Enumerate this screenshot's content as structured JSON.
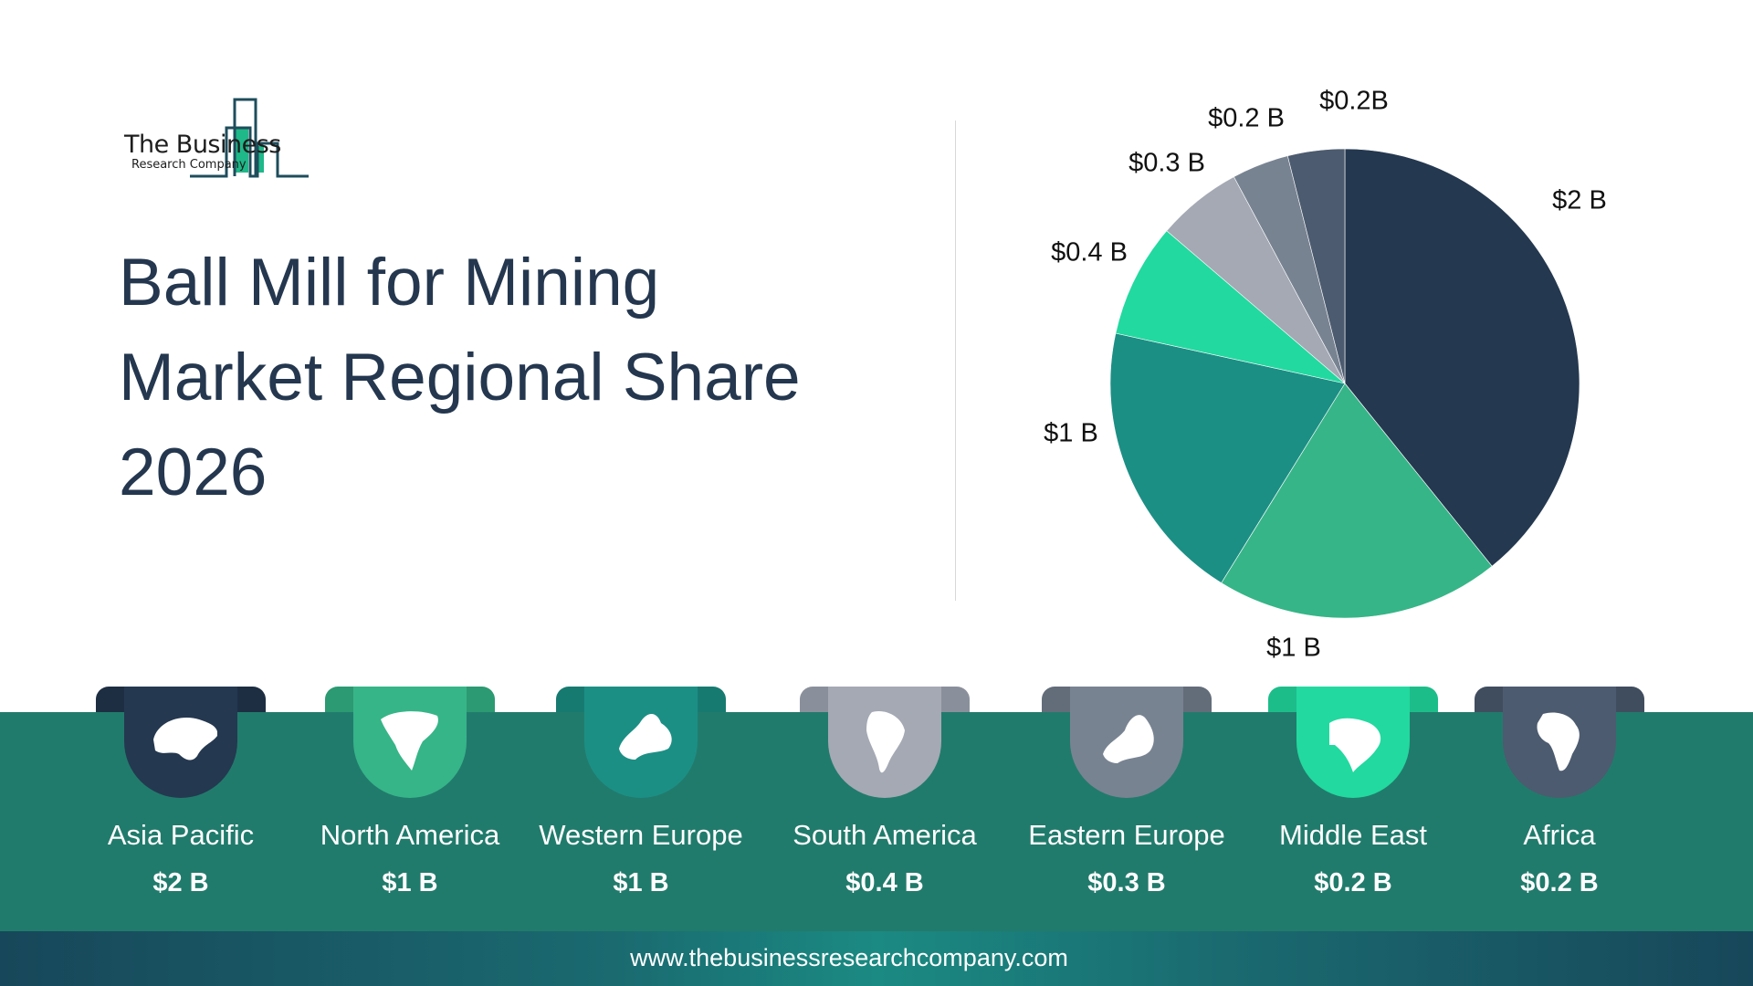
{
  "logo": {
    "line1": "The Business",
    "line2": "Research Company"
  },
  "title": {
    "line1": "Ball Mill for Mining",
    "line2": "Market Regional Share",
    "line3": "2026"
  },
  "chart_data": {
    "type": "pie",
    "title": "Ball Mill for Mining Market Regional Share 2026",
    "categories": [
      "Asia Pacific",
      "North America",
      "Western Europe",
      "South America",
      "Eastern Europe",
      "Middle East",
      "Africa"
    ],
    "values": [
      2,
      1,
      1,
      0.4,
      0.3,
      0.2,
      0.2
    ],
    "unit": "$ billion",
    "labels": [
      "$2 B",
      "$1 B",
      "$1 B",
      "$0.4 B",
      "$0.3 B",
      "$0.2 B",
      "$0.2B"
    ],
    "colors": [
      "#243850",
      "#36b588",
      "#1c8f85",
      "#22d99f",
      "#a4a9b4",
      "#788392",
      "#4c5b6f"
    ],
    "start": "12 o'clock, clockwise"
  },
  "regions": [
    {
      "name": "Asia Pacific",
      "value": "$2 B",
      "color": "#243850",
      "tab": "#1e2e42",
      "icon": "asia-map-icon"
    },
    {
      "name": "North America",
      "value": "$1 B",
      "color": "#36b588",
      "tab": "#2c9a72",
      "icon": "north-america-map-icon"
    },
    {
      "name": "Western Europe",
      "value": "$1 B",
      "color": "#1c8f85",
      "tab": "#177a71",
      "icon": "western-europe-map-icon"
    },
    {
      "name": "South America",
      "value": "$0.4 B",
      "color": "#a4a9b4",
      "tab": "#8a909b",
      "icon": "south-america-map-icon"
    },
    {
      "name": "Eastern Europe",
      "value": "$0.3 B",
      "color": "#788392",
      "tab": "#636d7a",
      "icon": "eastern-europe-map-icon"
    },
    {
      "name": "Middle East",
      "value": "$0.2 B",
      "color": "#22d99f",
      "tab": "#1dbd8a",
      "icon": "middle-east-map-icon"
    },
    {
      "name": "Africa",
      "value": "$0.2 B",
      "color": "#4c5b6f",
      "tab": "#404d5e",
      "icon": "africa-map-icon"
    }
  ],
  "footer": {
    "url": "www.thebusinessresearchcompany.com"
  }
}
